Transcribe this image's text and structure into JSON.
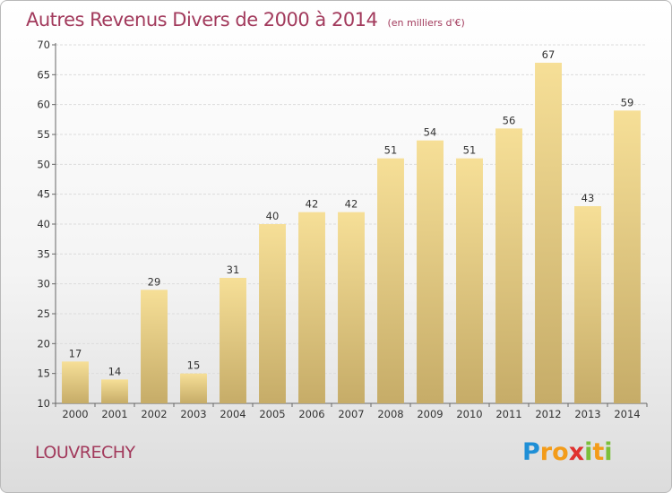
{
  "title": "Autres Revenus Divers de 2000 à 2014",
  "subtitle": "(en milliers d'€)",
  "commune": "LOUVRECHY",
  "logo": {
    "letters": [
      "P",
      "r",
      "o",
      "x",
      "i",
      "t",
      "i"
    ],
    "colors": [
      "#1f8fd6",
      "#f39c1a",
      "#f39c1a",
      "#e0312f",
      "#7bbf3a",
      "#f39c1a",
      "#7bbf3a"
    ]
  },
  "chart_data": {
    "type": "bar",
    "title": "Autres Revenus Divers de 2000 à 2014",
    "subtitle": "(en milliers d'€)",
    "categories": [
      "2000",
      "2001",
      "2002",
      "2003",
      "2004",
      "2005",
      "2006",
      "2007",
      "2008",
      "2009",
      "2010",
      "2011",
      "2012",
      "2013",
      "2014"
    ],
    "values": [
      17,
      14,
      29,
      15,
      31,
      40,
      42,
      42,
      51,
      54,
      51,
      56,
      67,
      43,
      59
    ],
    "data_labels": [
      "17",
      "14",
      "29",
      "15",
      "31",
      "40",
      "42",
      "42",
      "51",
      "54",
      "51",
      "56",
      "67",
      "43",
      "59"
    ],
    "yticks": [
      "10",
      "15",
      "20",
      "25",
      "30",
      "35",
      "40",
      "45",
      "50",
      "55",
      "60",
      "65",
      "70"
    ],
    "ylim": [
      10,
      70
    ],
    "grid": true,
    "bar_color": "#e8cf85",
    "xlabel": "",
    "ylabel": ""
  }
}
